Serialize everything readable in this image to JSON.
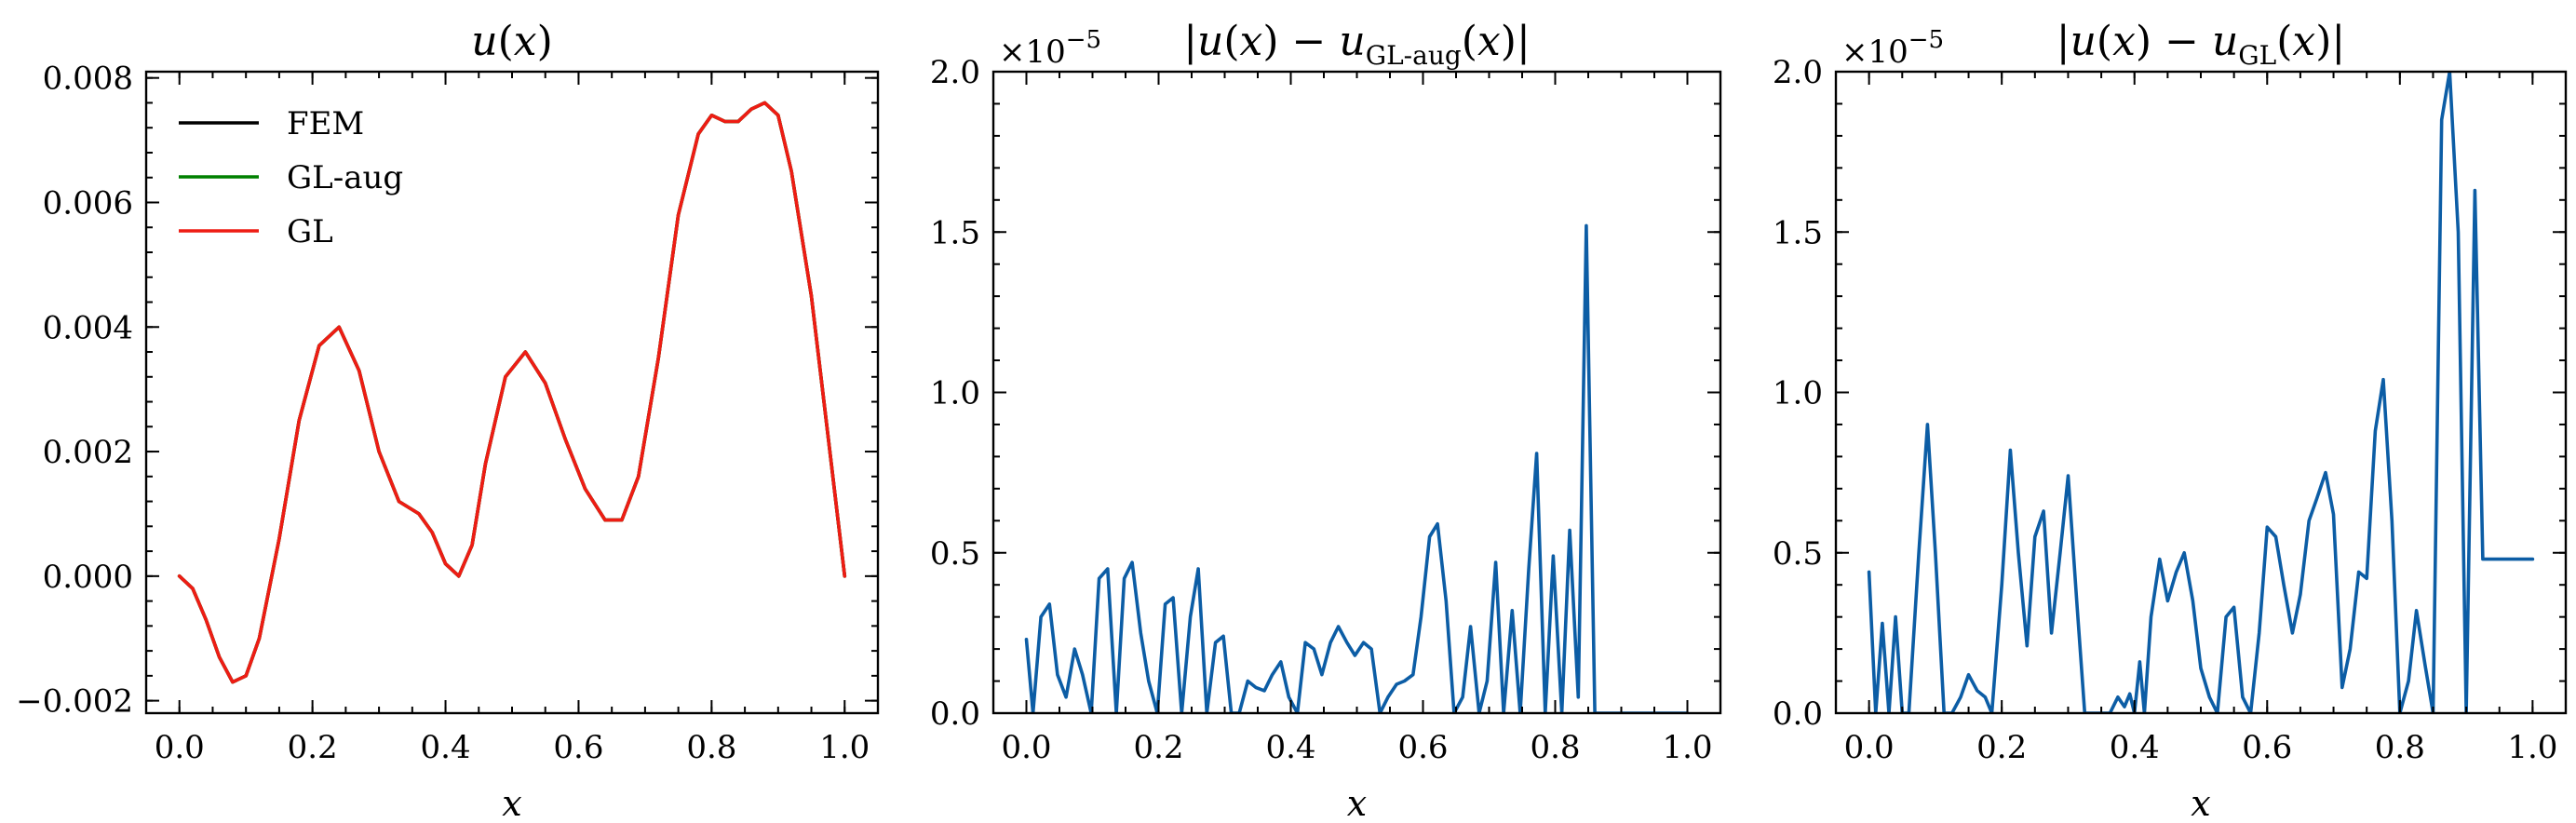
{
  "chart_data": [
    {
      "type": "line",
      "title": "u(x)",
      "xlabel": "x",
      "ylabel": "",
      "xlim": [
        -0.05,
        1.05
      ],
      "ylim": [
        -0.0022,
        0.0081
      ],
      "xticks": [
        0.0,
        0.2,
        0.4,
        0.6,
        0.8,
        1.0
      ],
      "xtick_labels": [
        "0.0",
        "0.2",
        "0.4",
        "0.6",
        "0.8",
        "1.0"
      ],
      "yticks": [
        -0.002,
        0.0,
        0.002,
        0.004,
        0.006,
        0.008
      ],
      "ytick_labels": [
        "−0.002",
        "0.000",
        "0.002",
        "0.004",
        "0.006",
        "0.008"
      ],
      "legend_position": "top-left",
      "legend": [
        "FEM",
        "GL-aug",
        "GL"
      ],
      "colors": {
        "FEM": "#000000",
        "GL-aug": "#008000",
        "GL": "#ee1c14"
      },
      "series": [
        {
          "name": "FEM",
          "color": "#000000",
          "x": [
            0.0,
            0.02,
            0.04,
            0.06,
            0.08,
            0.1,
            0.12,
            0.15,
            0.18,
            0.21,
            0.24,
            0.27,
            0.3,
            0.33,
            0.36,
            0.38,
            0.4,
            0.42,
            0.44,
            0.46,
            0.49,
            0.52,
            0.55,
            0.58,
            0.61,
            0.64,
            0.665,
            0.69,
            0.72,
            0.75,
            0.78,
            0.8,
            0.82,
            0.84,
            0.86,
            0.88,
            0.9,
            0.92,
            0.95,
            0.98,
            1.0
          ],
          "y": [
            0.0,
            -0.0002,
            -0.0007,
            -0.0013,
            -0.0017,
            -0.0016,
            -0.001,
            0.0006,
            0.0025,
            0.0037,
            0.004,
            0.0033,
            0.002,
            0.0012,
            0.001,
            0.0007,
            0.0002,
            0.0,
            0.0005,
            0.0018,
            0.0032,
            0.0036,
            0.0031,
            0.0022,
            0.0014,
            0.0009,
            0.0009,
            0.0016,
            0.0035,
            0.0058,
            0.0071,
            0.0074,
            0.0073,
            0.0073,
            0.0075,
            0.0076,
            0.0074,
            0.0065,
            0.0045,
            0.0018,
            0.0
          ]
        },
        {
          "name": "GL-aug",
          "color": "#008000",
          "x": [
            0.0,
            0.02,
            0.04,
            0.06,
            0.08,
            0.1,
            0.12,
            0.15,
            0.18,
            0.21,
            0.24,
            0.27,
            0.3,
            0.33,
            0.36,
            0.38,
            0.4,
            0.42,
            0.44,
            0.46,
            0.49,
            0.52,
            0.55,
            0.58,
            0.61,
            0.64,
            0.665,
            0.69,
            0.72,
            0.75,
            0.78,
            0.8,
            0.82,
            0.84,
            0.86,
            0.88,
            0.9,
            0.92,
            0.95,
            0.98,
            1.0
          ],
          "y": [
            0.0,
            -0.0002,
            -0.0007,
            -0.0013,
            -0.0017,
            -0.0016,
            -0.001,
            0.0006,
            0.0025,
            0.0037,
            0.004,
            0.0033,
            0.002,
            0.0012,
            0.001,
            0.0007,
            0.0002,
            0.0,
            0.0005,
            0.0018,
            0.0032,
            0.0036,
            0.0031,
            0.0022,
            0.0014,
            0.0009,
            0.0009,
            0.0016,
            0.0035,
            0.0058,
            0.0071,
            0.0074,
            0.0073,
            0.0073,
            0.0075,
            0.0076,
            0.0074,
            0.0065,
            0.0045,
            0.0018,
            0.0
          ]
        },
        {
          "name": "GL",
          "color": "#ee1c14",
          "x": [
            0.0,
            0.02,
            0.04,
            0.06,
            0.08,
            0.1,
            0.12,
            0.15,
            0.18,
            0.21,
            0.24,
            0.27,
            0.3,
            0.33,
            0.36,
            0.38,
            0.4,
            0.42,
            0.44,
            0.46,
            0.49,
            0.52,
            0.55,
            0.58,
            0.61,
            0.64,
            0.665,
            0.69,
            0.72,
            0.75,
            0.78,
            0.8,
            0.82,
            0.84,
            0.86,
            0.88,
            0.9,
            0.92,
            0.95,
            0.98,
            1.0
          ],
          "y": [
            0.0,
            -0.0002,
            -0.0007,
            -0.0013,
            -0.0017,
            -0.0016,
            -0.001,
            0.0006,
            0.0025,
            0.0037,
            0.004,
            0.0033,
            0.002,
            0.0012,
            0.001,
            0.0007,
            0.0002,
            0.0,
            0.0005,
            0.0018,
            0.0032,
            0.0036,
            0.0031,
            0.0022,
            0.0014,
            0.0009,
            0.0009,
            0.0016,
            0.0035,
            0.0058,
            0.0071,
            0.0074,
            0.0073,
            0.0073,
            0.0075,
            0.0076,
            0.0074,
            0.0065,
            0.0045,
            0.0018,
            0.0
          ]
        }
      ]
    },
    {
      "type": "line",
      "title_parts": [
        "|",
        "u",
        "(",
        "x",
        ") − ",
        "u",
        "GL-aug",
        "(",
        "x",
        ")|"
      ],
      "xlabel": "x",
      "ylabel": "",
      "y_offset_text": "×10",
      "y_offset_exp": "−5",
      "xlim": [
        -0.05,
        1.05
      ],
      "ylim": [
        0.0,
        2.0
      ],
      "y_scale_factor": "1e-5",
      "xticks": [
        0.0,
        0.2,
        0.4,
        0.6,
        0.8,
        1.0
      ],
      "xtick_labels": [
        "0.0",
        "0.2",
        "0.4",
        "0.6",
        "0.8",
        "1.0"
      ],
      "yticks": [
        0.0,
        0.5,
        1.0,
        1.5,
        2.0
      ],
      "ytick_labels": [
        "0.0",
        "0.5",
        "1.0",
        "1.5",
        "2.0"
      ],
      "series": [
        {
          "color": "#0c5da5",
          "x": [
            0.0,
            0.01,
            0.022,
            0.035,
            0.047,
            0.06,
            0.073,
            0.085,
            0.098,
            0.11,
            0.123,
            0.136,
            0.148,
            0.16,
            0.173,
            0.185,
            0.198,
            0.21,
            0.222,
            0.235,
            0.248,
            0.26,
            0.273,
            0.286,
            0.298,
            0.31,
            0.322,
            0.335,
            0.347,
            0.36,
            0.372,
            0.385,
            0.397,
            0.41,
            0.422,
            0.435,
            0.447,
            0.46,
            0.472,
            0.485,
            0.497,
            0.51,
            0.522,
            0.535,
            0.547,
            0.56,
            0.572,
            0.585,
            0.597,
            0.61,
            0.622,
            0.635,
            0.647,
            0.66,
            0.672,
            0.685,
            0.697,
            0.71,
            0.722,
            0.735,
            0.747,
            0.76,
            0.772,
            0.785,
            0.797,
            0.81,
            0.822,
            0.835,
            0.847,
            0.86,
            0.872,
            0.885,
            0.897,
            0.91,
            0.922,
            0.935,
            0.947,
            0.96,
            0.972,
            0.985,
            0.993,
            1.0
          ],
          "y": [
            0.23,
            0.0,
            0.3,
            0.34,
            0.12,
            0.05,
            0.2,
            0.12,
            0.0,
            0.42,
            0.45,
            0.0,
            0.42,
            0.47,
            0.25,
            0.1,
            0.0,
            0.34,
            0.36,
            0.0,
            0.3,
            0.45,
            0.0,
            0.22,
            0.24,
            0.0,
            0.0,
            0.1,
            0.08,
            0.07,
            0.12,
            0.16,
            0.05,
            0.0,
            0.22,
            0.2,
            0.12,
            0.22,
            0.27,
            0.22,
            0.18,
            0.22,
            0.2,
            0.0,
            0.05,
            0.09,
            0.1,
            0.12,
            0.3,
            0.55,
            0.59,
            0.35,
            0.0,
            0.05,
            0.27,
            0.0,
            0.1,
            0.47,
            0.0,
            0.32,
            0.0,
            0.45,
            0.81,
            0.0,
            0.49,
            0.0,
            0.57,
            0.05,
            1.52,
            0.0,
            0.0,
            0.0,
            0.0,
            0.0,
            0.0,
            0.0,
            0.0,
            0.0,
            0.0,
            0.0,
            0.0,
            0.0
          ]
        }
      ]
    },
    {
      "type": "line",
      "title_parts": [
        "|",
        "u",
        "(",
        "x",
        ") − ",
        "u",
        "GL",
        "(",
        "x",
        ")|"
      ],
      "xlabel": "x",
      "ylabel": "",
      "y_offset_text": "×10",
      "y_offset_exp": "−5",
      "xlim": [
        -0.05,
        1.05
      ],
      "ylim": [
        0.0,
        2.0
      ],
      "y_scale_factor": "1e-5",
      "xticks": [
        0.0,
        0.2,
        0.4,
        0.6,
        0.8,
        1.0
      ],
      "xtick_labels": [
        "0.0",
        "0.2",
        "0.4",
        "0.6",
        "0.8",
        "1.0"
      ],
      "yticks": [
        0.0,
        0.5,
        1.0,
        1.5,
        2.0
      ],
      "ytick_labels": [
        "0.0",
        "0.5",
        "1.0",
        "1.5",
        "2.0"
      ],
      "series": [
        {
          "color": "#0c5da5",
          "x": [
            0.0,
            0.01,
            0.02,
            0.03,
            0.04,
            0.05,
            0.06,
            0.075,
            0.088,
            0.1,
            0.113,
            0.125,
            0.138,
            0.15,
            0.163,
            0.175,
            0.185,
            0.2,
            0.213,
            0.225,
            0.238,
            0.25,
            0.263,
            0.275,
            0.288,
            0.3,
            0.313,
            0.325,
            0.338,
            0.35,
            0.363,
            0.375,
            0.385,
            0.393,
            0.4,
            0.408,
            0.415,
            0.425,
            0.438,
            0.45,
            0.463,
            0.475,
            0.488,
            0.5,
            0.513,
            0.525,
            0.538,
            0.55,
            0.563,
            0.575,
            0.588,
            0.6,
            0.613,
            0.625,
            0.638,
            0.65,
            0.663,
            0.675,
            0.688,
            0.7,
            0.713,
            0.725,
            0.738,
            0.75,
            0.763,
            0.775,
            0.788,
            0.8,
            0.813,
            0.825,
            0.838,
            0.85,
            0.863,
            0.875,
            0.888,
            0.9,
            0.913,
            0.925,
            0.935,
            0.945,
            0.955,
            0.96,
            0.965,
            0.972,
            0.978,
            0.985,
            0.99,
            0.995,
            1.0
          ],
          "y": [
            0.44,
            0.0,
            0.28,
            0.0,
            0.3,
            0.0,
            0.0,
            0.5,
            0.9,
            0.5,
            0.0,
            0.0,
            0.05,
            0.12,
            0.07,
            0.05,
            0.0,
            0.4,
            0.82,
            0.5,
            0.21,
            0.55,
            0.63,
            0.25,
            0.5,
            0.74,
            0.35,
            0.0,
            0.0,
            0.0,
            0.0,
            0.05,
            0.02,
            0.06,
            0.0,
            0.16,
            0.0,
            0.3,
            0.48,
            0.35,
            0.44,
            0.5,
            0.35,
            0.14,
            0.05,
            0.0,
            0.3,
            0.33,
            0.05,
            0.0,
            0.25,
            0.58,
            0.55,
            0.4,
            0.25,
            0.37,
            0.6,
            0.67,
            0.75,
            0.62,
            0.08,
            0.2,
            0.44,
            0.42,
            0.88,
            1.04,
            0.6,
            0.0,
            0.1,
            0.32,
            0.15,
            0.0,
            1.85,
            2.0,
            1.5,
            0.0,
            1.63,
            0.48,
            0.48,
            0.48,
            0.48,
            0.48,
            0.48,
            0.48,
            0.48,
            0.48,
            0.48,
            0.48,
            0.48
          ]
        }
      ]
    }
  ]
}
